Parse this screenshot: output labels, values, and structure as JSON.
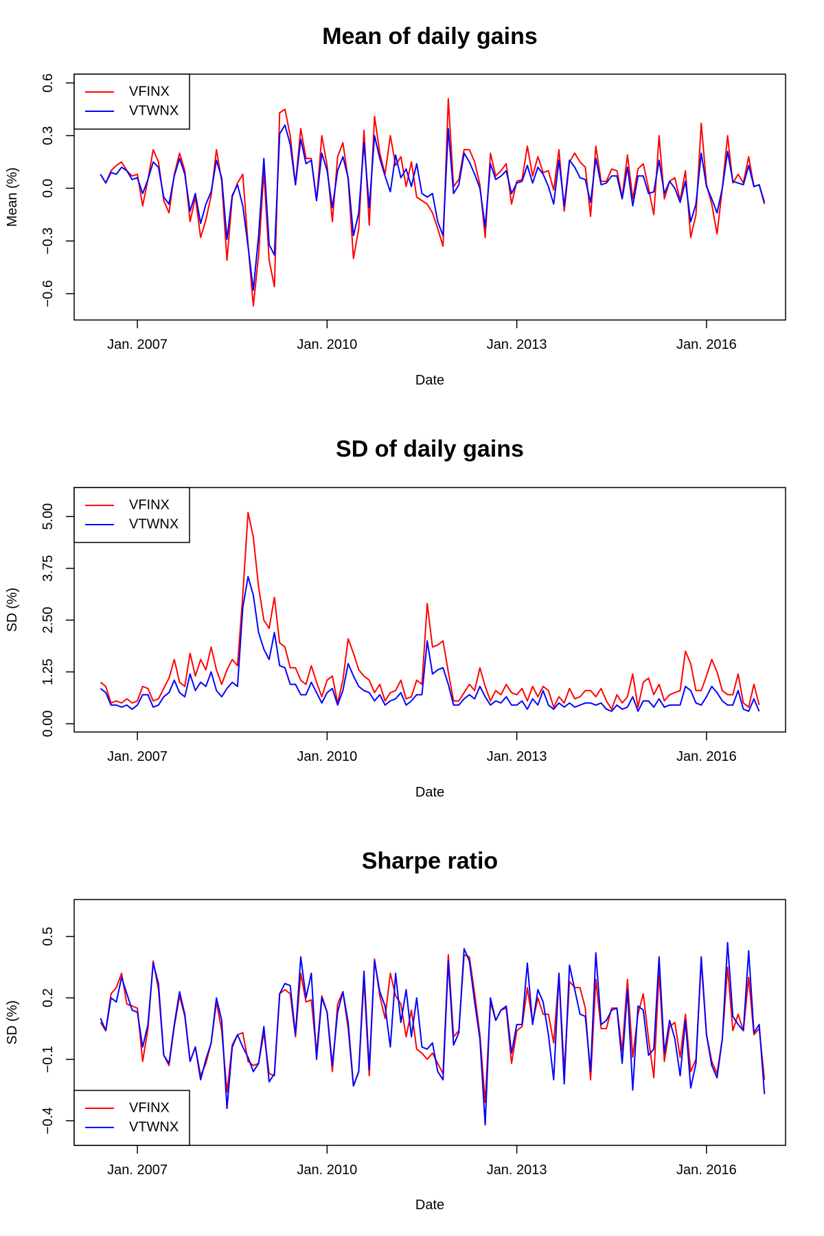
{
  "chart_data": [
    {
      "type": "line",
      "title": "Mean of daily gains",
      "xlabel": "Date",
      "ylabel": "Mean (%)",
      "xlim": [
        "2006-01-01",
        "2017-04-01"
      ],
      "ylim": [
        -0.75,
        0.65
      ],
      "x_ticks": [
        {
          "value": "2007-01-01",
          "label": "Jan. 2007"
        },
        {
          "value": "2010-01-01",
          "label": "Jan. 2010"
        },
        {
          "value": "2013-01-01",
          "label": "Jan. 2013"
        },
        {
          "value": "2016-01-01",
          "label": "Jan. 2016"
        }
      ],
      "y_ticks": [
        {
          "value": -0.6,
          "label": "−0.6"
        },
        {
          "value": -0.3,
          "label": "−0.3"
        },
        {
          "value": 0.0,
          "label": "0.0"
        },
        {
          "value": 0.3,
          "label": "0.3"
        },
        {
          "value": 0.6,
          "label": "0.6"
        }
      ],
      "legend_position": "top-left",
      "x_start": "2006-06-01",
      "x_step": "month",
      "series": [
        {
          "name": "VFINX",
          "color": "#ff0000",
          "values": [
            0.08,
            0.03,
            0.1,
            0.13,
            0.15,
            0.1,
            0.07,
            0.08,
            -0.1,
            0.05,
            0.22,
            0.15,
            -0.07,
            -0.14,
            0.08,
            0.2,
            0.1,
            -0.19,
            -0.05,
            -0.28,
            -0.18,
            -0.04,
            0.22,
            0.04,
            -0.41,
            -0.05,
            0.03,
            0.08,
            -0.32,
            -0.67,
            -0.38,
            0.1,
            -0.41,
            -0.56,
            0.43,
            0.45,
            0.3,
            0.02,
            0.34,
            0.17,
            0.17,
            -0.07,
            0.3,
            0.13,
            -0.19,
            0.18,
            0.26,
            0.05,
            -0.4,
            -0.23,
            0.33,
            -0.21,
            0.41,
            0.2,
            0.08,
            0.3,
            0.13,
            0.18,
            0.01,
            0.15,
            -0.05,
            -0.07,
            -0.09,
            -0.14,
            -0.23,
            -0.33,
            0.51,
            0.01,
            0.05,
            0.22,
            0.22,
            0.15,
            0.02,
            -0.28,
            0.2,
            0.07,
            0.1,
            0.14,
            -0.09,
            0.04,
            0.05,
            0.24,
            0.07,
            0.18,
            0.09,
            0.1,
            -0.01,
            0.22,
            -0.13,
            0.15,
            0.2,
            0.15,
            0.12,
            -0.16,
            0.24,
            0.04,
            0.04,
            0.11,
            0.1,
            -0.05,
            0.19,
            -0.06,
            0.11,
            0.14,
            0.0,
            -0.15,
            0.3,
            -0.06,
            0.04,
            0.06,
            -0.07,
            0.1,
            -0.28,
            -0.15,
            0.37,
            0.02,
            -0.09,
            -0.26,
            0.0,
            0.3,
            0.03,
            0.08,
            0.03,
            0.18,
            0.01,
            0.02,
            -0.09
          ]
        },
        {
          "name": "VTWNX",
          "color": "#0000ff",
          "values": [
            0.08,
            0.03,
            0.09,
            0.08,
            0.12,
            0.1,
            0.05,
            0.06,
            -0.03,
            0.05,
            0.15,
            0.12,
            -0.05,
            -0.09,
            0.07,
            0.17,
            0.08,
            -0.13,
            -0.03,
            -0.2,
            -0.09,
            -0.02,
            0.16,
            0.06,
            -0.29,
            -0.04,
            0.02,
            -0.1,
            -0.33,
            -0.58,
            -0.27,
            0.17,
            -0.32,
            -0.38,
            0.31,
            0.36,
            0.25,
            0.02,
            0.28,
            0.14,
            0.16,
            -0.07,
            0.2,
            0.1,
            -0.11,
            0.1,
            0.18,
            0.06,
            -0.27,
            -0.14,
            0.26,
            -0.11,
            0.3,
            0.17,
            0.07,
            -0.02,
            0.19,
            0.06,
            0.11,
            0.01,
            0.14,
            -0.03,
            -0.05,
            -0.03,
            -0.19,
            -0.27,
            0.34,
            -0.03,
            0.02,
            0.2,
            0.15,
            0.08,
            0.0,
            -0.22,
            0.14,
            0.05,
            0.07,
            0.1,
            -0.03,
            0.03,
            0.04,
            0.13,
            0.03,
            0.12,
            0.08,
            0.01,
            -0.09,
            0.16,
            -0.1,
            0.16,
            0.12,
            0.06,
            0.05,
            -0.08,
            0.17,
            0.02,
            0.03,
            0.07,
            0.07,
            -0.06,
            0.12,
            -0.1,
            0.07,
            0.07,
            -0.03,
            -0.02,
            0.16,
            -0.03,
            0.04,
            0.0,
            -0.08,
            0.04,
            -0.19,
            -0.09,
            0.2,
            0.01,
            -0.06,
            -0.14,
            0.0,
            0.21,
            0.04,
            0.03,
            0.02,
            0.13,
            0.01,
            0.02,
            -0.08
          ]
        }
      ]
    },
    {
      "type": "line",
      "title": "SD of daily gains",
      "xlabel": "Date",
      "ylabel": "SD (%)",
      "xlim": [
        "2006-01-01",
        "2017-04-01"
      ],
      "ylim": [
        -0.2,
        5.7
      ],
      "x_ticks": [
        {
          "value": "2007-01-01",
          "label": "Jan. 2007"
        },
        {
          "value": "2010-01-01",
          "label": "Jan. 2010"
        },
        {
          "value": "2013-01-01",
          "label": "Jan. 2013"
        },
        {
          "value": "2016-01-01",
          "label": "Jan. 2016"
        }
      ],
      "y_ticks": [
        {
          "value": 0.0,
          "label": "0.00"
        },
        {
          "value": 1.25,
          "label": "1.25"
        },
        {
          "value": 2.5,
          "label": "2.50"
        },
        {
          "value": 3.75,
          "label": "3.75"
        },
        {
          "value": 5.0,
          "label": "5.00"
        }
      ],
      "legend_position": "top-left",
      "x_start": "2006-06-01",
      "x_step": "month",
      "series": [
        {
          "name": "VFINX",
          "color": "#ff0000",
          "values": [
            1.0,
            0.9,
            0.5,
            0.55,
            0.5,
            0.6,
            0.5,
            0.55,
            0.9,
            0.85,
            0.55,
            0.6,
            0.85,
            1.1,
            1.55,
            1.0,
            0.9,
            1.7,
            1.15,
            1.55,
            1.3,
            1.85,
            1.3,
            0.95,
            1.3,
            1.55,
            1.4,
            3.1,
            5.1,
            4.5,
            3.3,
            2.5,
            2.3,
            3.05,
            1.95,
            1.85,
            1.35,
            1.35,
            1.05,
            0.95,
            1.4,
            1.0,
            0.65,
            1.05,
            1.15,
            0.5,
            1.05,
            2.05,
            1.7,
            1.3,
            1.15,
            1.05,
            0.75,
            0.95,
            0.55,
            0.75,
            0.8,
            1.05,
            0.6,
            0.65,
            1.05,
            0.95,
            2.9,
            1.85,
            1.9,
            2.0,
            1.25,
            0.55,
            0.55,
            0.75,
            0.95,
            0.8,
            1.35,
            0.9,
            0.55,
            0.8,
            0.7,
            0.95,
            0.75,
            0.7,
            0.85,
            0.55,
            0.9,
            0.65,
            0.9,
            0.8,
            0.4,
            0.65,
            0.5,
            0.85,
            0.6,
            0.65,
            0.8,
            0.8,
            0.65,
            0.85,
            0.55,
            0.35,
            0.7,
            0.5,
            0.65,
            1.2,
            0.4,
            1.0,
            1.1,
            0.7,
            0.95,
            0.55,
            0.7,
            0.75,
            0.8,
            1.75,
            1.45,
            0.8,
            0.8,
            1.15,
            1.55,
            1.25,
            0.8,
            0.7,
            0.7,
            1.2,
            0.5,
            0.4,
            0.95,
            0.45
          ]
        },
        {
          "name": "VTWNX",
          "color": "#0000ff",
          "values": [
            0.85,
            0.75,
            0.45,
            0.45,
            0.4,
            0.45,
            0.35,
            0.45,
            0.7,
            0.7,
            0.4,
            0.45,
            0.65,
            0.75,
            1.05,
            0.75,
            0.65,
            1.2,
            0.8,
            1.0,
            0.9,
            1.25,
            0.8,
            0.65,
            0.85,
            1.0,
            0.9,
            2.8,
            3.55,
            3.1,
            2.2,
            1.8,
            1.55,
            2.2,
            1.4,
            1.35,
            0.95,
            0.95,
            0.7,
            0.7,
            1.0,
            0.75,
            0.5,
            0.75,
            0.85,
            0.45,
            0.8,
            1.45,
            1.15,
            0.9,
            0.8,
            0.75,
            0.55,
            0.7,
            0.45,
            0.55,
            0.6,
            0.75,
            0.45,
            0.55,
            0.7,
            0.7,
            2.0,
            1.2,
            1.3,
            1.35,
            0.95,
            0.45,
            0.45,
            0.6,
            0.7,
            0.6,
            0.9,
            0.65,
            0.45,
            0.55,
            0.5,
            0.65,
            0.45,
            0.45,
            0.55,
            0.35,
            0.6,
            0.45,
            0.8,
            0.45,
            0.35,
            0.5,
            0.4,
            0.5,
            0.4,
            0.45,
            0.5,
            0.5,
            0.45,
            0.5,
            0.35,
            0.3,
            0.45,
            0.35,
            0.4,
            0.65,
            0.3,
            0.55,
            0.55,
            0.4,
            0.6,
            0.4,
            0.45,
            0.45,
            0.45,
            0.9,
            0.8,
            0.5,
            0.45,
            0.65,
            0.9,
            0.75,
            0.55,
            0.45,
            0.45,
            0.8,
            0.35,
            0.3,
            0.6,
            0.3
          ]
        }
      ]
    },
    {
      "type": "line",
      "title": "Sharpe ratio",
      "xlabel": "Date",
      "ylabel": "SD (%)",
      "xlim": [
        "2006-01-01",
        "2017-04-01"
      ],
      "ylim": [
        -0.52,
        0.68
      ],
      "x_ticks": [
        {
          "value": "2007-01-01",
          "label": "Jan. 2007"
        },
        {
          "value": "2010-01-01",
          "label": "Jan. 2010"
        },
        {
          "value": "2013-01-01",
          "label": "Jan. 2013"
        },
        {
          "value": "2016-01-01",
          "label": "Jan. 2016"
        }
      ],
      "y_ticks": [
        {
          "value": -0.4,
          "label": "−0.4"
        },
        {
          "value": -0.1,
          "label": "−0.1"
        },
        {
          "value": 0.2,
          "label": "0.2"
        },
        {
          "value": 0.5,
          "label": "0.5"
        }
      ],
      "legend_position": "bottom-left",
      "x_start": "2006-06-01",
      "x_step": "month",
      "series": [
        {
          "name": "VFINX",
          "color": "#ff0000",
          "values": [
            0.08,
            0.04,
            0.22,
            0.25,
            0.32,
            0.17,
            0.16,
            0.15,
            -0.11,
            0.05,
            0.38,
            0.24,
            -0.08,
            -0.13,
            0.06,
            0.21,
            0.11,
            -0.11,
            -0.04,
            -0.18,
            -0.12,
            -0.02,
            0.18,
            0.04,
            -0.26,
            -0.03,
            0.02,
            0.03,
            -0.11,
            -0.13,
            -0.12,
            0.03,
            -0.17,
            -0.18,
            0.22,
            0.24,
            0.22,
            0.01,
            0.32,
            0.18,
            0.19,
            -0.07,
            0.21,
            0.13,
            -0.16,
            0.17,
            0.23,
            0.05,
            -0.23,
            -0.16,
            0.29,
            -0.18,
            0.39,
            0.21,
            0.1,
            0.32,
            0.21,
            0.17,
            0.01,
            0.14,
            -0.05,
            -0.07,
            -0.1,
            -0.07,
            -0.12,
            -0.17,
            0.41,
            0.01,
            0.04,
            0.41,
            0.4,
            0.22,
            0.02,
            -0.31,
            0.18,
            0.09,
            0.14,
            0.15,
            -0.12,
            0.04,
            0.06,
            0.25,
            0.08,
            0.2,
            0.12,
            0.12,
            -0.02,
            0.32,
            -0.16,
            0.28,
            0.25,
            0.25,
            0.15,
            -0.2,
            0.29,
            0.05,
            0.05,
            0.15,
            0.15,
            -0.06,
            0.29,
            -0.09,
            0.12,
            0.22,
            0.0,
            -0.19,
            0.33,
            -0.11,
            0.06,
            0.08,
            -0.09,
            0.12,
            -0.16,
            -0.1,
            0.38,
            0.02,
            -0.11,
            -0.17,
            0.0,
            0.35,
            0.04,
            0.12,
            0.04,
            0.3,
            0.02,
            0.05,
            -0.2
          ]
        },
        {
          "name": "VTWNX",
          "color": "#0000ff",
          "values": [
            0.1,
            0.04,
            0.2,
            0.18,
            0.3,
            0.22,
            0.14,
            0.13,
            -0.04,
            0.07,
            0.37,
            0.27,
            -0.08,
            -0.12,
            0.07,
            0.23,
            0.12,
            -0.11,
            -0.04,
            -0.2,
            -0.1,
            -0.02,
            0.2,
            0.09,
            -0.34,
            -0.04,
            0.02,
            -0.04,
            -0.09,
            -0.16,
            -0.12,
            0.06,
            -0.21,
            -0.17,
            0.22,
            0.27,
            0.26,
            0.02,
            0.4,
            0.2,
            0.32,
            -0.1,
            0.2,
            0.13,
            -0.13,
            0.13,
            0.23,
            0.08,
            -0.23,
            -0.16,
            0.33,
            -0.15,
            0.38,
            0.23,
            0.16,
            -0.04,
            0.32,
            0.08,
            0.24,
            0.01,
            0.2,
            -0.04,
            -0.05,
            -0.02,
            -0.16,
            -0.2,
            0.38,
            -0.03,
            0.03,
            0.44,
            0.38,
            0.18,
            0.0,
            -0.42,
            0.2,
            0.09,
            0.14,
            0.16,
            -0.07,
            0.07,
            0.07,
            0.37,
            0.07,
            0.24,
            0.18,
            0.02,
            -0.2,
            0.32,
            -0.22,
            0.36,
            0.24,
            0.12,
            0.11,
            -0.16,
            0.42,
            0.07,
            0.09,
            0.14,
            0.15,
            -0.12,
            0.24,
            -0.25,
            0.16,
            0.14,
            -0.08,
            -0.05,
            0.4,
            -0.07,
            0.09,
            0.0,
            -0.18,
            0.09,
            -0.24,
            -0.12,
            0.4,
            0.02,
            -0.13,
            -0.19,
            0.0,
            0.47,
            0.11,
            0.07,
            0.04,
            0.43,
            0.03,
            0.07,
            -0.27
          ]
        }
      ]
    }
  ]
}
